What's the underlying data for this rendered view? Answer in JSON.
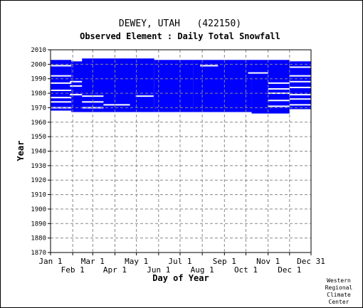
{
  "chart_data": {
    "type": "heatmap",
    "title": "DEWEY, UTAH   (422150)",
    "subtitle": "Observed Element : Daily Total Snowfall",
    "xlabel": "Day of Year",
    "ylabel": "Year",
    "ylim": [
      1870,
      2010
    ],
    "xlim": [
      1,
      365
    ],
    "yticks": [
      1870,
      1880,
      1890,
      1900,
      1910,
      1920,
      1930,
      1940,
      1950,
      1960,
      1970,
      1980,
      1990,
      2000,
      2010
    ],
    "xticks_top": [
      {
        "label": "Jan 1",
        "day": 1
      },
      {
        "label": "Mar 1",
        "day": 60
      },
      {
        "label": "May 1",
        "day": 121
      },
      {
        "label": "Jul 1",
        "day": 182
      },
      {
        "label": "Sep 1",
        "day": 244
      },
      {
        "label": "Nov 1",
        "day": 305
      },
      {
        "label": "Dec 31",
        "day": 365
      }
    ],
    "xticks_bottom": [
      {
        "label": "Feb 1",
        "day": 32
      },
      {
        "label": "Apr 1",
        "day": 91
      },
      {
        "label": "Jun 1",
        "day": 152
      },
      {
        "label": "Aug 1",
        "day": 213
      },
      {
        "label": "Oct 1",
        "day": 274
      },
      {
        "label": "Dec 1",
        "day": 335
      }
    ],
    "grid": true,
    "color": "#0000ff",
    "data_blocks": [
      {
        "day_start": 1,
        "day_end": 30,
        "year_start": 1968,
        "year_end": 2003
      },
      {
        "day_start": 30,
        "day_end": 60,
        "year_start": 1967,
        "year_end": 2002
      },
      {
        "day_start": 45,
        "day_end": 146,
        "year_start": 1967,
        "year_end": 2004
      },
      {
        "day_start": 146,
        "day_end": 200,
        "year_start": 1967,
        "year_end": 2003
      },
      {
        "day_start": 200,
        "day_end": 282,
        "year_start": 1967,
        "year_end": 2003
      },
      {
        "day_start": 282,
        "day_end": 335,
        "year_start": 1966,
        "year_end": 2003
      },
      {
        "day_start": 335,
        "day_end": 365,
        "year_start": 1969,
        "year_end": 2002
      }
    ],
    "gaps": [
      {
        "day_start": 1,
        "day_end": 30,
        "year": 1999
      },
      {
        "day_start": 1,
        "day_end": 30,
        "year": 1992
      },
      {
        "day_start": 1,
        "day_end": 30,
        "year": 1987
      },
      {
        "day_start": 1,
        "day_end": 30,
        "year": 1982
      },
      {
        "day_start": 1,
        "day_end": 30,
        "year": 1977
      },
      {
        "day_start": 1,
        "day_end": 30,
        "year": 1974
      },
      {
        "day_start": 1,
        "day_end": 30,
        "year": 1970
      },
      {
        "day_start": 28,
        "day_end": 45,
        "year": 1988
      },
      {
        "day_start": 28,
        "day_end": 45,
        "year": 1985
      },
      {
        "day_start": 28,
        "day_end": 45,
        "year": 1979
      },
      {
        "day_start": 45,
        "day_end": 75,
        "year": 1978
      },
      {
        "day_start": 45,
        "day_end": 75,
        "year": 1974
      },
      {
        "day_start": 45,
        "day_end": 75,
        "year": 1970
      },
      {
        "day_start": 75,
        "day_end": 112,
        "year": 1972
      },
      {
        "day_start": 120,
        "day_end": 145,
        "year": 1978
      },
      {
        "day_start": 210,
        "day_end": 235,
        "year": 1999
      },
      {
        "day_start": 277,
        "day_end": 305,
        "year": 1994
      },
      {
        "day_start": 305,
        "day_end": 335,
        "year": 1987
      },
      {
        "day_start": 305,
        "day_end": 335,
        "year": 1983
      },
      {
        "day_start": 305,
        "day_end": 335,
        "year": 1980
      },
      {
        "day_start": 305,
        "day_end": 335,
        "year": 1975
      },
      {
        "day_start": 305,
        "day_end": 335,
        "year": 1971
      },
      {
        "day_start": 335,
        "day_end": 365,
        "year": 1998
      },
      {
        "day_start": 335,
        "day_end": 365,
        "year": 1992
      },
      {
        "day_start": 335,
        "day_end": 365,
        "year": 1988
      },
      {
        "day_start": 335,
        "day_end": 365,
        "year": 1984
      },
      {
        "day_start": 335,
        "day_end": 365,
        "year": 1979
      },
      {
        "day_start": 335,
        "day_end": 365,
        "year": 1976
      },
      {
        "day_start": 335,
        "day_end": 365,
        "year": 1972
      }
    ]
  },
  "credit": [
    "Western",
    "Regional",
    "Climate",
    "Center"
  ]
}
